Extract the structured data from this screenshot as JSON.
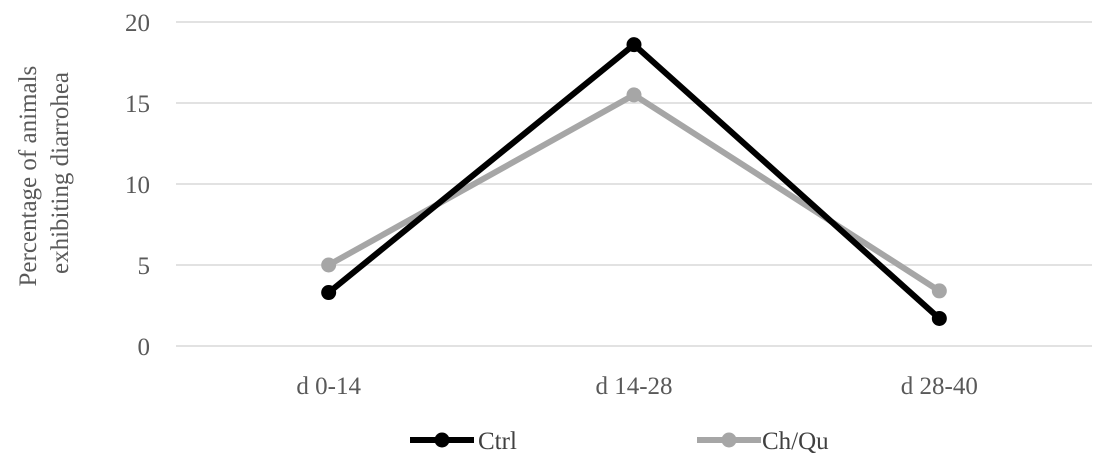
{
  "chart_data": {
    "type": "line",
    "title": "",
    "xlabel": "",
    "ylabel_lines": [
      "Percentage of animals",
      "exhibiting diarrohea"
    ],
    "categories": [
      "d 0-14",
      "d 14-28",
      "d 28-40"
    ],
    "ylim": [
      0,
      20
    ],
    "yticks": [
      0,
      5,
      10,
      15,
      20
    ],
    "grid": "horizontal",
    "legend_position": "bottom",
    "series": [
      {
        "name": "Ctrl",
        "color": "#000000",
        "values": [
          3.3,
          18.6,
          1.7
        ]
      },
      {
        "name": "Ch/Qu",
        "color": "#a6a6a6",
        "values": [
          5.0,
          15.5,
          3.4
        ]
      }
    ]
  }
}
